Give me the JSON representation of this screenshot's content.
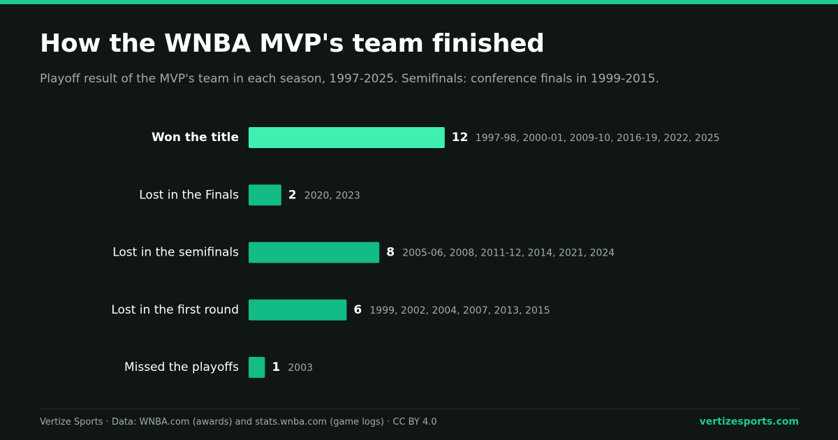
{
  "title": "How the WNBA MVP's team finished",
  "subtitle": "Playoff result of the MVP's team in each season, 1997-2025. Semifinals: conference finals in 1999-2015.",
  "footer": {
    "source": "Vertize Sports · Data: WNBA.com (awards) and stats.wnba.com (game logs) · CC BY 4.0",
    "brand": "vertizesports.com"
  },
  "colors": {
    "background": "#0f1614",
    "accent": "#1ec98f",
    "highlight_bar": "#3ff0b0",
    "bar": "#13bb86",
    "label": "#ffffff",
    "muted": "#a3aca8"
  },
  "chart_data": {
    "type": "bar",
    "orientation": "horizontal",
    "title": "How the WNBA MVP's team finished",
    "subtitle": "Playoff result of the MVP's team in each season, 1997-2025. Semifinals: conference finals in 1999-2015.",
    "categories": [
      "Won the title",
      "Lost in the Finals",
      "Lost in the semifinals",
      "Lost in the first round",
      "Missed the playoffs"
    ],
    "values": [
      12,
      2,
      8,
      6,
      1
    ],
    "annotations": [
      "1997-98, 2000-01, 2009-10, 2016-19, 2022, 2025",
      "2020, 2023",
      "2005-06, 2008, 2011-12, 2014, 2021, 2024",
      "1999, 2002, 2004, 2007, 2013, 2015",
      "2003"
    ],
    "highlight": "Won the title",
    "xlim": [
      0,
      12
    ],
    "grid": false,
    "legend": "none"
  }
}
